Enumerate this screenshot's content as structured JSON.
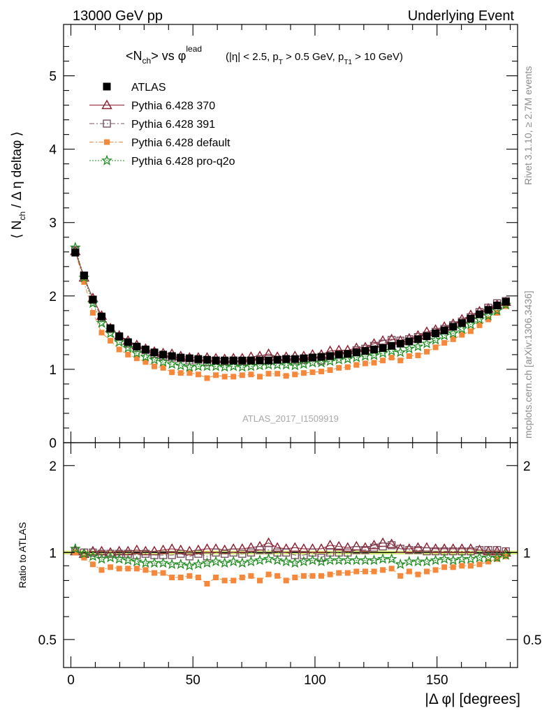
{
  "header": {
    "energy_label": "13000 GeV pp",
    "process_label": "Underlying Event"
  },
  "plot_title": {
    "lhs": "<N",
    "lhs_sub": "ch",
    "mid": "> vs φ",
    "mid_sup": "lead",
    "cuts_a": "(|η| < 2.5, p",
    "cuts_a_sub": "T",
    "cuts_b": " > 0.5 GeV, p",
    "cuts_b_sub": "T1",
    "cuts_c": " > 10 GeV)"
  },
  "side_labels": {
    "rivet": "Rivet 3.1.10, ≥ 2.7M events",
    "mcplots": "mcplots.cern.ch [arXiv:1306.3436]"
  },
  "analysis_id": "ATLAS_2017_I1509919",
  "y_label_main": {
    "pre": "⟨ N",
    "sub": "ch",
    "post": " / Δ η deltaφ ⟩"
  },
  "y_label_ratio": "Ratio to ATLAS",
  "x_label": "|Δ φ| [degrees]",
  "colors": {
    "atlas": "#000000",
    "p370": "#8b1a2b",
    "p391": "#7a5060",
    "pdefault": "#f5883a",
    "pq2o": "#1e8c1e",
    "band": "#d8f07a"
  },
  "chart_data": [
    {
      "type": "scatter",
      "panel": "main",
      "x_ticks": [
        0,
        50,
        100,
        150
      ],
      "y_ticks": [
        0,
        1,
        2,
        3,
        4,
        5
      ],
      "xlim": [
        -3,
        183
      ],
      "ylim": [
        0,
        5.7
      ],
      "legend_position": "top-left",
      "series": [
        {
          "name": "ATLAS",
          "key": "atlas",
          "marker": "filled-square",
          "x": [
            1.8,
            5.4,
            9,
            12.6,
            16.2,
            19.8,
            23.4,
            27,
            30.6,
            34.2,
            37.8,
            41.4,
            45,
            48.6,
            52.2,
            55.8,
            59.4,
            63,
            66.6,
            70.2,
            73.8,
            77.4,
            81,
            84.6,
            88.2,
            91.8,
            95.4,
            99,
            102.6,
            106.2,
            109.8,
            113.4,
            117,
            120.6,
            124.2,
            127.8,
            131.4,
            135,
            138.6,
            142.2,
            145.8,
            149.4,
            153,
            156.6,
            160.2,
            163.8,
            167.4,
            171,
            174.6,
            178.2
          ],
          "y": [
            2.59,
            2.28,
            1.95,
            1.72,
            1.56,
            1.45,
            1.37,
            1.31,
            1.27,
            1.23,
            1.2,
            1.18,
            1.16,
            1.15,
            1.14,
            1.13,
            1.12,
            1.12,
            1.12,
            1.12,
            1.12,
            1.12,
            1.12,
            1.13,
            1.14,
            1.14,
            1.15,
            1.16,
            1.17,
            1.18,
            1.2,
            1.21,
            1.23,
            1.25,
            1.27,
            1.29,
            1.32,
            1.35,
            1.38,
            1.41,
            1.45,
            1.49,
            1.53,
            1.58,
            1.63,
            1.69,
            1.75,
            1.81,
            1.87,
            1.92
          ]
        },
        {
          "name": "Pythia 6.428 370",
          "key": "p370",
          "marker": "open-triangle",
          "x": [
            1.8,
            5.4,
            9,
            12.6,
            16.2,
            19.8,
            23.4,
            27,
            30.6,
            34.2,
            37.8,
            41.4,
            45,
            48.6,
            52.2,
            55.8,
            59.4,
            63,
            66.6,
            70.2,
            73.8,
            77.4,
            81,
            84.6,
            88.2,
            91.8,
            95.4,
            99,
            102.6,
            106.2,
            109.8,
            113.4,
            117,
            120.6,
            124.2,
            127.8,
            131.4,
            135,
            138.6,
            142.2,
            145.8,
            149.4,
            153,
            156.6,
            160.2,
            163.8,
            167.4,
            171,
            174.6,
            178.2
          ],
          "y": [
            2.61,
            2.25,
            1.97,
            1.73,
            1.56,
            1.46,
            1.39,
            1.33,
            1.28,
            1.24,
            1.22,
            1.21,
            1.18,
            1.16,
            1.16,
            1.16,
            1.15,
            1.14,
            1.15,
            1.15,
            1.17,
            1.18,
            1.21,
            1.17,
            1.17,
            1.18,
            1.18,
            1.2,
            1.2,
            1.25,
            1.26,
            1.26,
            1.29,
            1.3,
            1.35,
            1.39,
            1.41,
            1.39,
            1.42,
            1.46,
            1.51,
            1.54,
            1.58,
            1.62,
            1.68,
            1.74,
            1.79,
            1.83,
            1.88,
            1.92
          ]
        },
        {
          "name": "Pythia 6.428 391",
          "key": "p391",
          "marker": "open-square",
          "x": [
            1.8,
            5.4,
            9,
            12.6,
            16.2,
            19.8,
            23.4,
            27,
            30.6,
            34.2,
            37.8,
            41.4,
            45,
            48.6,
            52.2,
            55.8,
            59.4,
            63,
            66.6,
            70.2,
            73.8,
            77.4,
            81,
            84.6,
            88.2,
            91.8,
            95.4,
            99,
            102.6,
            106.2,
            109.8,
            113.4,
            117,
            120.6,
            124.2,
            127.8,
            131.4,
            135,
            138.6,
            142.2,
            145.8,
            149.4,
            153,
            156.6,
            160.2,
            163.8,
            167.4,
            171,
            174.6,
            178.2
          ],
          "y": [
            2.62,
            2.27,
            1.95,
            1.7,
            1.55,
            1.44,
            1.35,
            1.29,
            1.26,
            1.21,
            1.18,
            1.16,
            1.15,
            1.12,
            1.13,
            1.1,
            1.12,
            1.11,
            1.12,
            1.11,
            1.12,
            1.14,
            1.14,
            1.13,
            1.14,
            1.12,
            1.13,
            1.16,
            1.12,
            1.18,
            1.2,
            1.21,
            1.26,
            1.28,
            1.32,
            1.35,
            1.4,
            1.39,
            1.41,
            1.44,
            1.46,
            1.51,
            1.55,
            1.6,
            1.65,
            1.71,
            1.78,
            1.84,
            1.9,
            1.93
          ]
        },
        {
          "name": "Pythia 6.428 default",
          "key": "pdefault",
          "marker": "filled-square-small",
          "x": [
            1.8,
            5.4,
            9,
            12.6,
            16.2,
            19.8,
            23.4,
            27,
            30.6,
            34.2,
            37.8,
            41.4,
            45,
            48.6,
            52.2,
            55.8,
            59.4,
            63,
            66.6,
            70.2,
            73.8,
            77.4,
            81,
            84.6,
            88.2,
            91.8,
            95.4,
            99,
            102.6,
            106.2,
            109.8,
            113.4,
            117,
            120.6,
            124.2,
            127.8,
            131.4,
            135,
            138.6,
            142.2,
            145.8,
            149.4,
            153,
            156.6,
            160.2,
            163.8,
            167.4,
            171,
            174.6,
            178.2
          ],
          "y": [
            2.6,
            2.19,
            1.77,
            1.5,
            1.39,
            1.27,
            1.2,
            1.15,
            1.1,
            1.04,
            1.02,
            0.96,
            0.95,
            0.95,
            0.93,
            0.88,
            0.92,
            0.9,
            0.9,
            0.92,
            0.93,
            0.9,
            0.94,
            0.94,
            0.91,
            0.93,
            0.95,
            0.96,
            0.97,
            0.99,
            1.02,
            1.03,
            1.06,
            1.08,
            1.09,
            1.12,
            1.16,
            1.12,
            1.18,
            1.19,
            1.24,
            1.3,
            1.36,
            1.41,
            1.47,
            1.52,
            1.6,
            1.68,
            1.77,
            1.86
          ]
        },
        {
          "name": "Pythia 6.428 pro-q2o",
          "key": "pq2o",
          "marker": "open-star",
          "x": [
            1.8,
            5.4,
            9,
            12.6,
            16.2,
            19.8,
            23.4,
            27,
            30.6,
            34.2,
            37.8,
            41.4,
            45,
            48.6,
            52.2,
            55.8,
            59.4,
            63,
            66.6,
            70.2,
            73.8,
            77.4,
            81,
            84.6,
            88.2,
            91.8,
            95.4,
            99,
            102.6,
            106.2,
            109.8,
            113.4,
            117,
            120.6,
            124.2,
            127.8,
            131.4,
            135,
            138.6,
            142.2,
            145.8,
            149.4,
            153,
            156.6,
            160.2,
            163.8,
            167.4,
            171,
            174.6,
            178.2
          ],
          "y": [
            2.66,
            2.25,
            1.9,
            1.63,
            1.49,
            1.37,
            1.29,
            1.22,
            1.17,
            1.13,
            1.1,
            1.07,
            1.05,
            1.03,
            1.04,
            1.04,
            1.04,
            1.03,
            1.04,
            1.03,
            1.04,
            1.05,
            1.06,
            1.06,
            1.06,
            1.05,
            1.07,
            1.09,
            1.09,
            1.11,
            1.13,
            1.14,
            1.16,
            1.18,
            1.19,
            1.22,
            1.25,
            1.23,
            1.28,
            1.31,
            1.35,
            1.4,
            1.46,
            1.49,
            1.55,
            1.61,
            1.68,
            1.73,
            1.8,
            1.88
          ]
        }
      ]
    },
    {
      "type": "scatter",
      "panel": "ratio",
      "x_ticks": [
        0,
        50,
        100,
        150
      ],
      "x_tick_labels": [
        "0",
        "50",
        "100",
        "150"
      ],
      "y_ticks": [
        0.5,
        1,
        2
      ],
      "y_tick_labels": [
        "0.5",
        "1",
        "2"
      ],
      "y_scale": "log",
      "xlim": [
        -3,
        183
      ],
      "ylim": [
        0.4,
        2.4
      ],
      "reference_band": [
        0.985,
        1.015
      ],
      "series": [
        {
          "name": "Pythia 6.428 370",
          "key": "p370",
          "marker": "open-triangle",
          "x": [
            1.8,
            5.4,
            9,
            12.6,
            16.2,
            19.8,
            23.4,
            27,
            30.6,
            34.2,
            37.8,
            41.4,
            45,
            48.6,
            52.2,
            55.8,
            59.4,
            63,
            66.6,
            70.2,
            73.8,
            77.4,
            81,
            84.6,
            88.2,
            91.8,
            95.4,
            99,
            102.6,
            106.2,
            109.8,
            113.4,
            117,
            120.6,
            124.2,
            127.8,
            131.4,
            135,
            138.6,
            142.2,
            145.8,
            149.4,
            153,
            156.6,
            160.2,
            163.8,
            167.4,
            171,
            174.6,
            178.2
          ],
          "y": [
            1.01,
            0.99,
            1.01,
            1.01,
            1.0,
            1.01,
            1.01,
            1.02,
            1.01,
            1.01,
            1.02,
            1.03,
            1.02,
            1.01,
            1.02,
            1.03,
            1.03,
            1.02,
            1.03,
            1.03,
            1.04,
            1.05,
            1.08,
            1.04,
            1.03,
            1.04,
            1.03,
            1.03,
            1.03,
            1.06,
            1.05,
            1.04,
            1.05,
            1.04,
            1.06,
            1.08,
            1.07,
            1.03,
            1.03,
            1.04,
            1.04,
            1.03,
            1.03,
            1.03,
            1.03,
            1.03,
            1.02,
            1.01,
            1.01,
            1.0
          ]
        },
        {
          "name": "Pythia 6.428 391",
          "key": "p391",
          "marker": "open-square",
          "x": [
            1.8,
            5.4,
            9,
            12.6,
            16.2,
            19.8,
            23.4,
            27,
            30.6,
            34.2,
            37.8,
            41.4,
            45,
            48.6,
            52.2,
            55.8,
            59.4,
            63,
            66.6,
            70.2,
            73.8,
            77.4,
            81,
            84.6,
            88.2,
            91.8,
            95.4,
            99,
            102.6,
            106.2,
            109.8,
            113.4,
            117,
            120.6,
            124.2,
            127.8,
            131.4,
            135,
            138.6,
            142.2,
            145.8,
            149.4,
            153,
            156.6,
            160.2,
            163.8,
            167.4,
            171,
            174.6,
            178.2
          ],
          "y": [
            1.01,
            1.0,
            1.0,
            0.99,
            0.99,
            0.99,
            0.99,
            0.98,
            0.99,
            0.98,
            0.98,
            0.98,
            0.99,
            0.97,
            0.99,
            0.97,
            1.0,
            0.99,
            1.0,
            0.99,
            1.0,
            1.02,
            1.02,
            1.0,
            1.0,
            0.98,
            0.98,
            1.0,
            0.96,
            1.0,
            1.0,
            1.0,
            1.02,
            1.02,
            1.04,
            1.05,
            1.06,
            1.03,
            1.02,
            1.02,
            1.01,
            1.01,
            1.01,
            1.01,
            1.01,
            1.01,
            1.02,
            1.02,
            1.02,
            1.01
          ]
        },
        {
          "name": "Pythia 6.428 default",
          "key": "pdefault",
          "marker": "filled-square-small",
          "x": [
            1.8,
            5.4,
            9,
            12.6,
            16.2,
            19.8,
            23.4,
            27,
            30.6,
            34.2,
            37.8,
            41.4,
            45,
            48.6,
            52.2,
            55.8,
            59.4,
            63,
            66.6,
            70.2,
            73.8,
            77.4,
            81,
            84.6,
            88.2,
            91.8,
            95.4,
            99,
            102.6,
            106.2,
            109.8,
            113.4,
            117,
            120.6,
            124.2,
            127.8,
            131.4,
            135,
            138.6,
            142.2,
            145.8,
            149.4,
            153,
            156.6,
            160.2,
            163.8,
            167.4,
            171,
            174.6,
            178.2
          ],
          "y": [
            1.0,
            0.96,
            0.91,
            0.87,
            0.89,
            0.88,
            0.88,
            0.88,
            0.87,
            0.85,
            0.85,
            0.82,
            0.82,
            0.83,
            0.82,
            0.78,
            0.82,
            0.8,
            0.8,
            0.82,
            0.83,
            0.8,
            0.84,
            0.83,
            0.8,
            0.82,
            0.83,
            0.83,
            0.83,
            0.84,
            0.85,
            0.85,
            0.86,
            0.86,
            0.86,
            0.87,
            0.88,
            0.83,
            0.86,
            0.84,
            0.86,
            0.87,
            0.89,
            0.89,
            0.9,
            0.9,
            0.91,
            0.93,
            0.95,
            0.97
          ]
        },
        {
          "name": "Pythia 6.428 pro-q2o",
          "key": "pq2o",
          "marker": "open-star",
          "x": [
            1.8,
            5.4,
            9,
            12.6,
            16.2,
            19.8,
            23.4,
            27,
            30.6,
            34.2,
            37.8,
            41.4,
            45,
            48.6,
            52.2,
            55.8,
            59.4,
            63,
            66.6,
            70.2,
            73.8,
            77.4,
            81,
            84.6,
            88.2,
            91.8,
            95.4,
            99,
            102.6,
            106.2,
            109.8,
            113.4,
            117,
            120.6,
            124.2,
            127.8,
            131.4,
            135,
            138.6,
            142.2,
            145.8,
            149.4,
            153,
            156.6,
            160.2,
            163.8,
            167.4,
            171,
            174.6,
            178.2
          ],
          "y": [
            1.03,
            0.99,
            0.97,
            0.95,
            0.96,
            0.95,
            0.94,
            0.93,
            0.92,
            0.92,
            0.92,
            0.91,
            0.91,
            0.9,
            0.91,
            0.92,
            0.93,
            0.92,
            0.93,
            0.92,
            0.93,
            0.94,
            0.95,
            0.94,
            0.93,
            0.92,
            0.93,
            0.94,
            0.93,
            0.94,
            0.94,
            0.94,
            0.94,
            0.94,
            0.94,
            0.95,
            0.95,
            0.91,
            0.93,
            0.93,
            0.93,
            0.94,
            0.95,
            0.94,
            0.95,
            0.95,
            0.96,
            0.96,
            0.96,
            0.98
          ]
        }
      ]
    }
  ]
}
